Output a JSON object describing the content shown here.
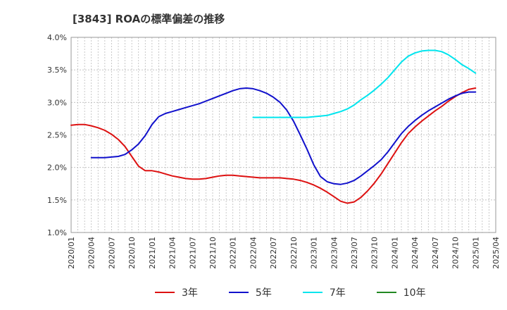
{
  "chart_data": {
    "type": "line",
    "title": "[3843]  ROAの標準偏差の推移",
    "xlabel": "",
    "ylabel": "",
    "ylim": [
      1.0,
      4.0
    ],
    "y_ticks": [
      "1.0%",
      "1.5%",
      "2.0%",
      "2.5%",
      "3.0%",
      "3.5%",
      "4.0%"
    ],
    "x_ticks": [
      "2020/01",
      "2020/04",
      "2020/07",
      "2020/10",
      "2021/01",
      "2021/04",
      "2021/07",
      "2021/10",
      "2022/01",
      "2022/04",
      "2022/07",
      "2022/10",
      "2023/01",
      "2023/04",
      "2023/07",
      "2023/10",
      "2024/01",
      "2024/04",
      "2024/07",
      "2024/10",
      "2025/01",
      "2025/04"
    ],
    "grid": true,
    "legend_position": "bottom",
    "series": [
      {
        "name": "3年",
        "color": "#dd1111",
        "points": [
          [
            "2020/01",
            2.65
          ],
          [
            "2020/02",
            2.66
          ],
          [
            "2020/03",
            2.66
          ],
          [
            "2020/04",
            2.64
          ],
          [
            "2020/05",
            2.61
          ],
          [
            "2020/06",
            2.57
          ],
          [
            "2020/07",
            2.51
          ],
          [
            "2020/08",
            2.43
          ],
          [
            "2020/09",
            2.32
          ],
          [
            "2020/10",
            2.17
          ],
          [
            "2020/11",
            2.02
          ],
          [
            "2020/12",
            1.95
          ],
          [
            "2021/01",
            1.95
          ],
          [
            "2021/02",
            1.93
          ],
          [
            "2021/03",
            1.9
          ],
          [
            "2021/04",
            1.87
          ],
          [
            "2021/05",
            1.85
          ],
          [
            "2021/06",
            1.83
          ],
          [
            "2021/07",
            1.82
          ],
          [
            "2021/08",
            1.82
          ],
          [
            "2021/09",
            1.83
          ],
          [
            "2021/10",
            1.85
          ],
          [
            "2021/11",
            1.87
          ],
          [
            "2021/12",
            1.88
          ],
          [
            "2022/01",
            1.88
          ],
          [
            "2022/02",
            1.87
          ],
          [
            "2022/03",
            1.86
          ],
          [
            "2022/04",
            1.85
          ],
          [
            "2022/05",
            1.84
          ],
          [
            "2022/06",
            1.84
          ],
          [
            "2022/07",
            1.84
          ],
          [
            "2022/08",
            1.84
          ],
          [
            "2022/09",
            1.83
          ],
          [
            "2022/10",
            1.82
          ],
          [
            "2022/11",
            1.8
          ],
          [
            "2022/12",
            1.77
          ],
          [
            "2023/01",
            1.73
          ],
          [
            "2023/02",
            1.68
          ],
          [
            "2023/03",
            1.62
          ],
          [
            "2023/04",
            1.55
          ],
          [
            "2023/05",
            1.48
          ],
          [
            "2023/06",
            1.45
          ],
          [
            "2023/07",
            1.47
          ],
          [
            "2023/08",
            1.54
          ],
          [
            "2023/09",
            1.64
          ],
          [
            "2023/10",
            1.76
          ],
          [
            "2023/11",
            1.9
          ],
          [
            "2023/12",
            2.06
          ],
          [
            "2024/01",
            2.22
          ],
          [
            "2024/02",
            2.38
          ],
          [
            "2024/03",
            2.52
          ],
          [
            "2024/04",
            2.62
          ],
          [
            "2024/05",
            2.71
          ],
          [
            "2024/06",
            2.79
          ],
          [
            "2024/07",
            2.87
          ],
          [
            "2024/08",
            2.94
          ],
          [
            "2024/09",
            3.02
          ],
          [
            "2024/10",
            3.09
          ],
          [
            "2024/11",
            3.15
          ],
          [
            "2024/12",
            3.2
          ],
          [
            "2025/01",
            3.22
          ]
        ]
      },
      {
        "name": "5年",
        "color": "#1111cc",
        "points": [
          [
            "2020/04",
            2.15
          ],
          [
            "2020/05",
            2.15
          ],
          [
            "2020/06",
            2.15
          ],
          [
            "2020/07",
            2.16
          ],
          [
            "2020/08",
            2.17
          ],
          [
            "2020/09",
            2.2
          ],
          [
            "2020/10",
            2.27
          ],
          [
            "2020/11",
            2.36
          ],
          [
            "2020/12",
            2.49
          ],
          [
            "2021/01",
            2.66
          ],
          [
            "2021/02",
            2.78
          ],
          [
            "2021/03",
            2.83
          ],
          [
            "2021/04",
            2.86
          ],
          [
            "2021/05",
            2.89
          ],
          [
            "2021/06",
            2.92
          ],
          [
            "2021/07",
            2.95
          ],
          [
            "2021/08",
            2.98
          ],
          [
            "2021/09",
            3.02
          ],
          [
            "2021/10",
            3.06
          ],
          [
            "2021/11",
            3.1
          ],
          [
            "2021/12",
            3.14
          ],
          [
            "2022/01",
            3.18
          ],
          [
            "2022/02",
            3.21
          ],
          [
            "2022/03",
            3.22
          ],
          [
            "2022/04",
            3.21
          ],
          [
            "2022/05",
            3.18
          ],
          [
            "2022/06",
            3.14
          ],
          [
            "2022/07",
            3.08
          ],
          [
            "2022/08",
            3.0
          ],
          [
            "2022/09",
            2.88
          ],
          [
            "2022/10",
            2.71
          ],
          [
            "2022/11",
            2.5
          ],
          [
            "2022/12",
            2.28
          ],
          [
            "2023/01",
            2.04
          ],
          [
            "2023/02",
            1.86
          ],
          [
            "2023/03",
            1.78
          ],
          [
            "2023/04",
            1.75
          ],
          [
            "2023/05",
            1.74
          ],
          [
            "2023/06",
            1.76
          ],
          [
            "2023/07",
            1.8
          ],
          [
            "2023/08",
            1.87
          ],
          [
            "2023/09",
            1.95
          ],
          [
            "2023/10",
            2.03
          ],
          [
            "2023/11",
            2.12
          ],
          [
            "2023/12",
            2.24
          ],
          [
            "2024/01",
            2.38
          ],
          [
            "2024/02",
            2.52
          ],
          [
            "2024/03",
            2.63
          ],
          [
            "2024/04",
            2.72
          ],
          [
            "2024/05",
            2.8
          ],
          [
            "2024/06",
            2.87
          ],
          [
            "2024/07",
            2.93
          ],
          [
            "2024/08",
            2.99
          ],
          [
            "2024/09",
            3.05
          ],
          [
            "2024/10",
            3.1
          ],
          [
            "2024/11",
            3.14
          ],
          [
            "2024/12",
            3.16
          ],
          [
            "2025/01",
            3.16
          ]
        ]
      },
      {
        "name": "7年",
        "color": "#00e5ee",
        "points": [
          [
            "2022/04",
            2.77
          ],
          [
            "2022/05",
            2.77
          ],
          [
            "2022/06",
            2.77
          ],
          [
            "2022/07",
            2.77
          ],
          [
            "2022/08",
            2.77
          ],
          [
            "2022/09",
            2.77
          ],
          [
            "2022/10",
            2.77
          ],
          [
            "2022/11",
            2.77
          ],
          [
            "2022/12",
            2.77
          ],
          [
            "2023/01",
            2.78
          ],
          [
            "2023/02",
            2.79
          ],
          [
            "2023/03",
            2.8
          ],
          [
            "2023/04",
            2.83
          ],
          [
            "2023/05",
            2.86
          ],
          [
            "2023/06",
            2.9
          ],
          [
            "2023/07",
            2.96
          ],
          [
            "2023/08",
            3.04
          ],
          [
            "2023/09",
            3.11
          ],
          [
            "2023/10",
            3.19
          ],
          [
            "2023/11",
            3.28
          ],
          [
            "2023/12",
            3.38
          ],
          [
            "2024/01",
            3.5
          ],
          [
            "2024/02",
            3.62
          ],
          [
            "2024/03",
            3.71
          ],
          [
            "2024/04",
            3.76
          ],
          [
            "2024/05",
            3.79
          ],
          [
            "2024/06",
            3.8
          ],
          [
            "2024/07",
            3.8
          ],
          [
            "2024/08",
            3.78
          ],
          [
            "2024/09",
            3.73
          ],
          [
            "2024/10",
            3.66
          ],
          [
            "2024/11",
            3.58
          ],
          [
            "2024/12",
            3.52
          ],
          [
            "2025/01",
            3.45
          ]
        ]
      },
      {
        "name": "10年",
        "color": "#228822",
        "points": []
      }
    ]
  }
}
